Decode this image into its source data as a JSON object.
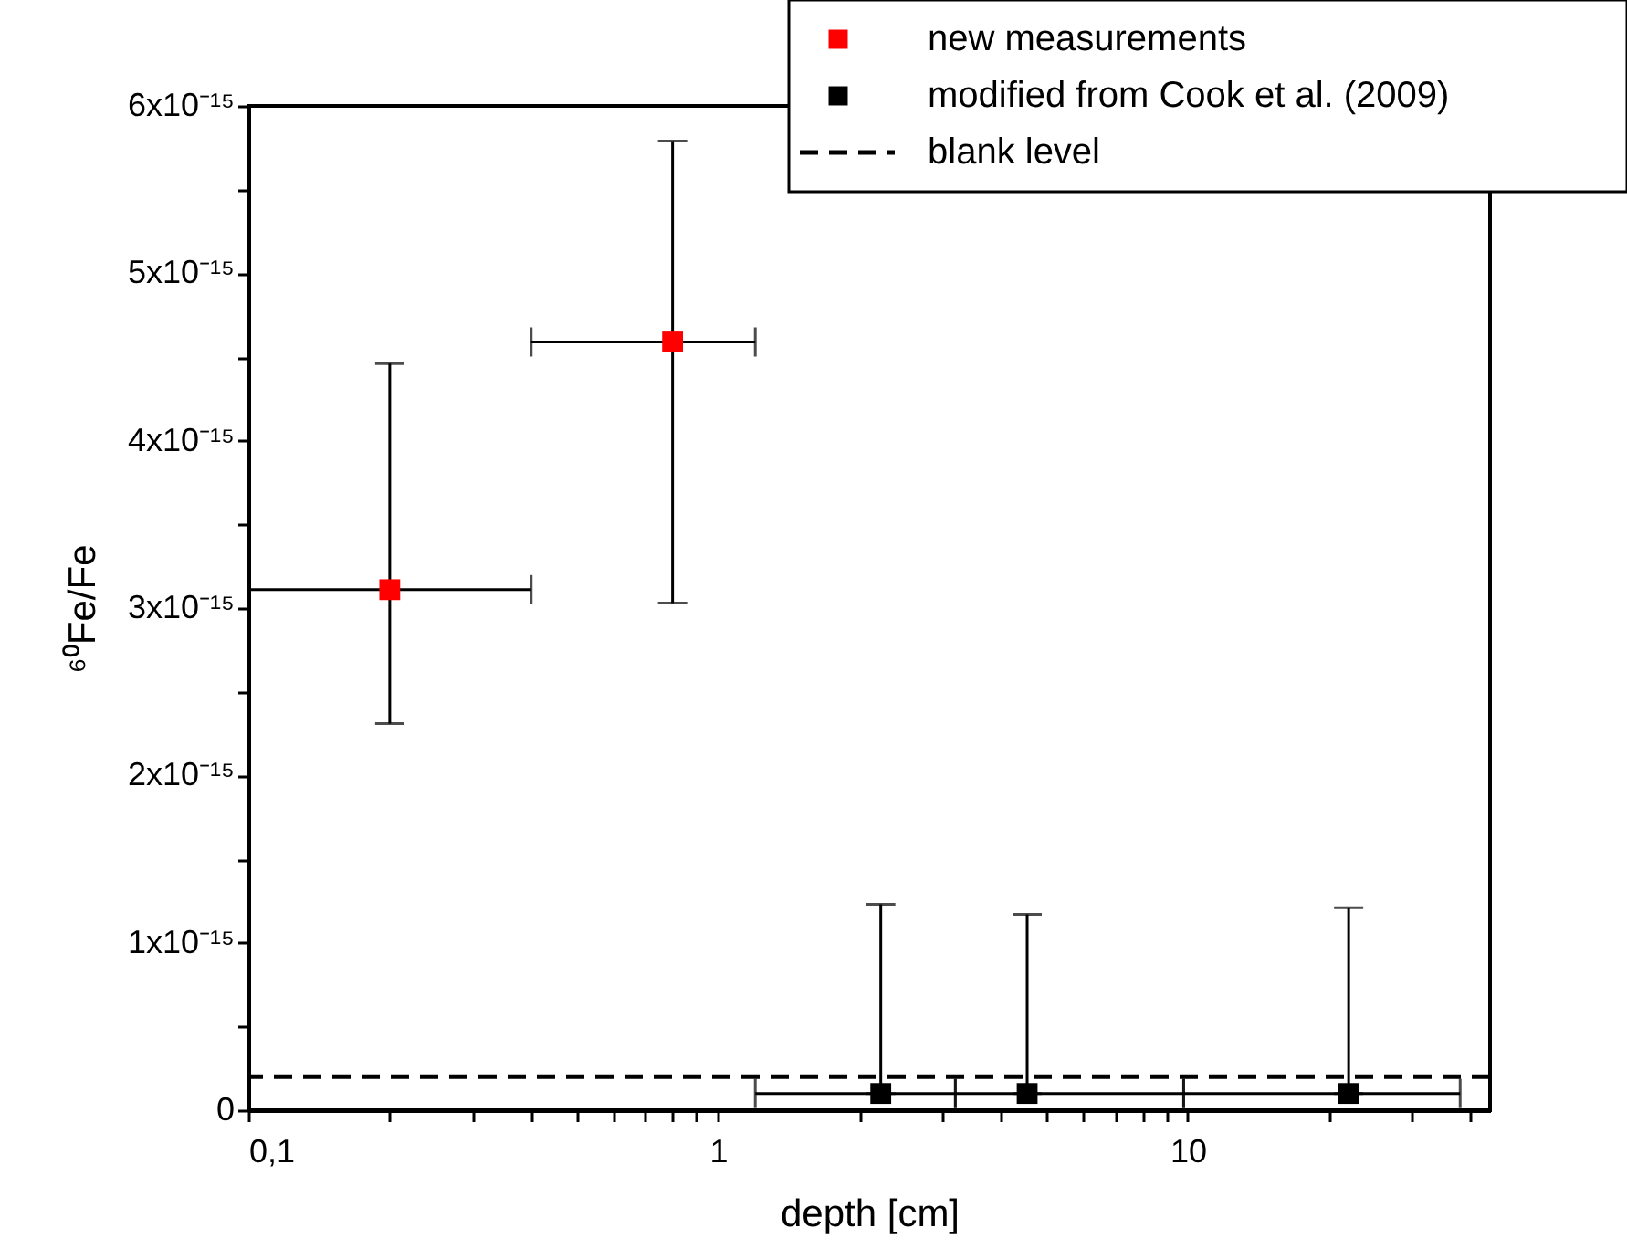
{
  "chart_data": {
    "type": "scatter",
    "xlabel": "depth [cm]",
    "ylabel": "⁶⁰Fe/Fe",
    "log": "x",
    "marker": "square",
    "legend": "top right",
    "grid": false,
    "xlim": [
      0.1,
      44
    ],
    "xticks": [
      {
        "value": 0.1,
        "label": "0,1"
      },
      {
        "value": 0.2,
        "label": null
      },
      {
        "value": 0.3,
        "label": null
      },
      {
        "value": 0.4,
        "label": null
      },
      {
        "value": 0.5,
        "label": null
      },
      {
        "value": 0.6,
        "label": null
      },
      {
        "value": 0.7,
        "label": null
      },
      {
        "value": 0.8,
        "label": null
      },
      {
        "value": 0.9,
        "label": null
      },
      1,
      {
        "value": 2,
        "label": null
      },
      {
        "value": 3,
        "label": null
      },
      {
        "value": 4,
        "label": null
      },
      {
        "value": 5,
        "label": null
      },
      {
        "value": 6,
        "label": null
      },
      {
        "value": 7,
        "label": null
      },
      {
        "value": 8,
        "label": null
      },
      {
        "value": 9,
        "label": null
      },
      10,
      {
        "value": 20,
        "label": null
      },
      {
        "value": 30,
        "label": null
      },
      {
        "value": 40,
        "label": null
      }
    ],
    "ylim": [
      0,
      6e-15
    ],
    "yticks": [
      0,
      {
        "value": 5e-16,
        "label": null
      },
      {
        "value": 1e-15,
        "label": "1x10⁻¹⁵"
      },
      {
        "value": 1.5e-15,
        "label": null
      },
      {
        "value": 2e-15,
        "label": "2x10⁻¹⁵"
      },
      {
        "value": 2.5e-15,
        "label": null
      },
      {
        "value": 3e-15,
        "label": "3x10⁻¹⁵"
      },
      {
        "value": 3.5e-15,
        "label": null
      },
      {
        "value": 4e-15,
        "label": "4x10⁻¹⁵"
      },
      {
        "value": 4.5e-15,
        "label": null
      },
      {
        "value": 5e-15,
        "label": "5x10⁻¹⁵"
      },
      {
        "value": 5.5e-15,
        "label": null
      },
      {
        "value": 6e-15,
        "label": "6x10⁻¹⁵"
      }
    ],
    "series": [
      {
        "name": "new measurements",
        "color": "#ff0000",
        "x": [
          0.2,
          0.8
        ],
        "values": [
          3.11e-15,
          4.59e-15
        ],
        "errors": [
          [
            2.31e-15,
            4.46e-15
          ],
          [
            3.03e-15,
            5.79e-15
          ]
        ],
        "xerrors": [
          [
            0.1,
            0.4
          ],
          [
            0.4,
            1.2
          ]
        ]
      },
      {
        "name": "modified from Cook et al. (2009)",
        "color": "#000000",
        "x": [
          2.22,
          4.55,
          22
        ],
        "values": [
          1e-16,
          1e-16,
          1e-16
        ],
        "errors": [
          [
            1e-16,
            1.23e-15
          ],
          [
            1e-16,
            1.17e-15
          ],
          [
            1e-16,
            1.21e-15
          ]
        ],
        "xerrors": [
          [
            1.2,
            3.2
          ],
          [
            3.2,
            9.8
          ],
          [
            9.8,
            38
          ]
        ]
      }
    ],
    "ref_lines": [
      {
        "axis": "y",
        "value": 2e-16,
        "label": "blank level",
        "line_style": "dashed",
        "color": "#000000"
      }
    ]
  }
}
